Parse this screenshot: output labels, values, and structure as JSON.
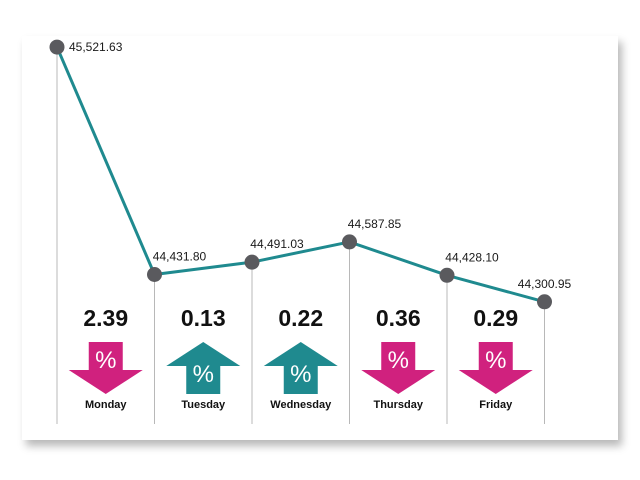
{
  "colors": {
    "line": "#1f8a8f",
    "marker": "#5a5a5e",
    "up": "#1f8a8f",
    "down": "#d0217e",
    "rule": "#b8b8b8"
  },
  "chart_data": {
    "type": "line",
    "categories": [
      "Monday",
      "Tuesday",
      "Wednesday",
      "Thursday",
      "Friday"
    ],
    "x": [
      0,
      1,
      2,
      3,
      4,
      5
    ],
    "values": [
      45521.63,
      44431.8,
      44491.03,
      44587.85,
      44428.1,
      44300.95
    ],
    "value_labels": [
      "45,521.63",
      "44,431.80",
      "44,491.03",
      "44,587.85",
      "44,428.10",
      "44,300.95"
    ],
    "daily_change": [
      {
        "day": "Monday",
        "percent": "2.39",
        "direction": "down",
        "symbol": "%"
      },
      {
        "day": "Tuesday",
        "percent": "0.13",
        "direction": "up",
        "symbol": "%"
      },
      {
        "day": "Wednesday",
        "percent": "0.22",
        "direction": "up",
        "symbol": "%"
      },
      {
        "day": "Thursday",
        "percent": "0.36",
        "direction": "down",
        "symbol": "%"
      },
      {
        "day": "Friday",
        "percent": "0.29",
        "direction": "down",
        "symbol": "%"
      }
    ],
    "ylim": [
      44300,
      45522
    ],
    "grid": false,
    "title": "",
    "xlabel": "",
    "ylabel": ""
  }
}
